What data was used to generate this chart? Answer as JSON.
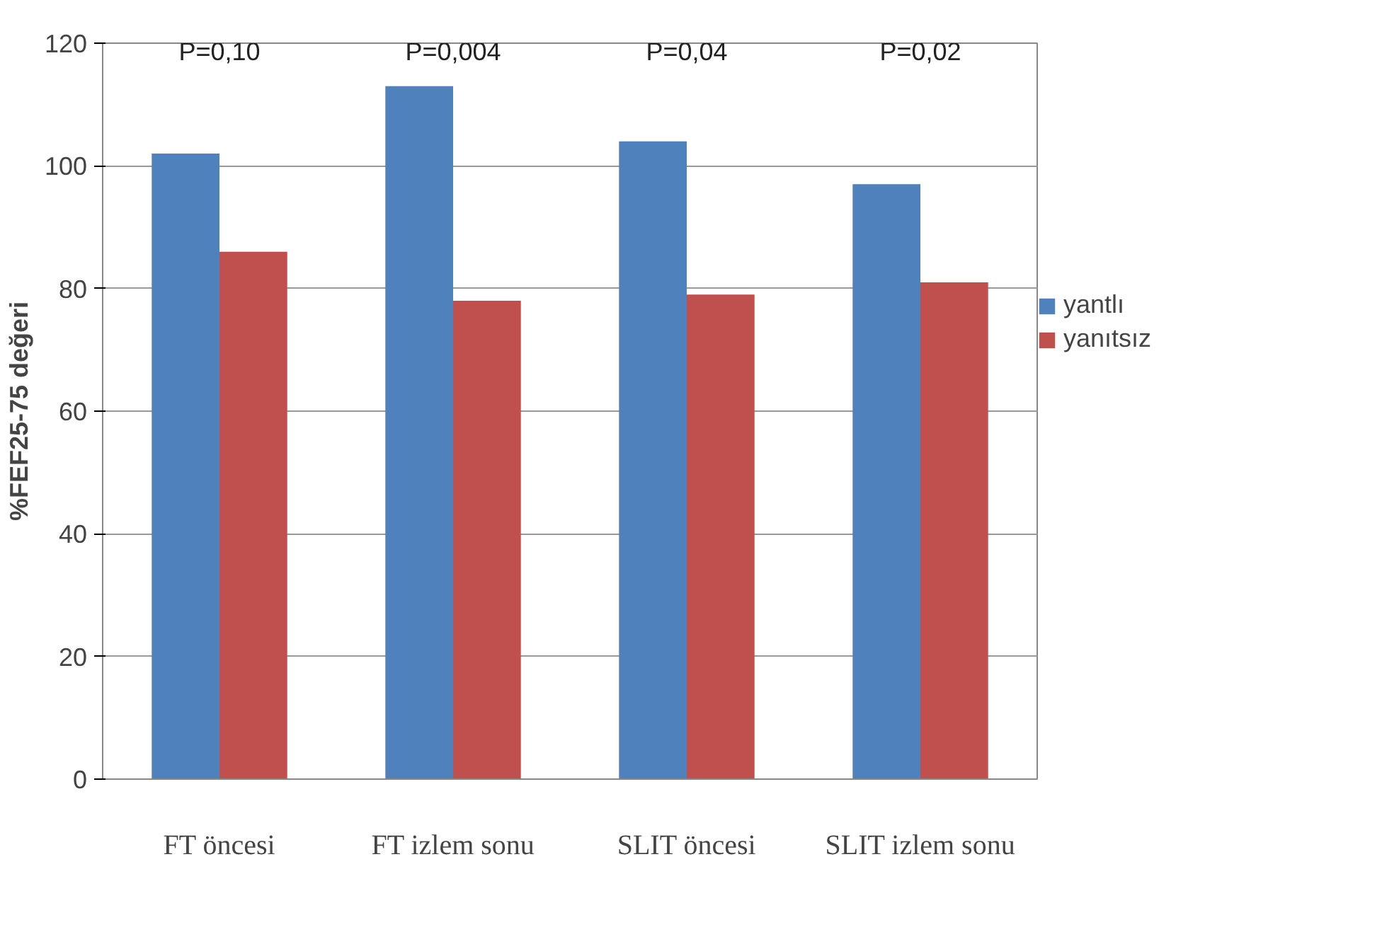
{
  "chart_data": {
    "type": "bar",
    "ylabel": "%FEF25-75 değeri",
    "categories": [
      "FT öncesi",
      "FT izlem sonu",
      "SLIT öncesi",
      "SLIT izlem sonu"
    ],
    "series": [
      {
        "name": "yantlı",
        "color": "#4f81bd",
        "values": [
          102,
          113,
          104,
          97
        ]
      },
      {
        "name": "yanıtsız",
        "color": "#c0504d",
        "values": [
          86,
          78,
          79,
          81
        ]
      }
    ],
    "ylim": [
      0,
      120
    ],
    "yticks": [
      0,
      20,
      40,
      60,
      80,
      100,
      120
    ],
    "grid": "y",
    "legend": "right",
    "annotations": [
      "P=0,10",
      "P=0,004",
      "P=0,04",
      "P=0,02"
    ]
  }
}
